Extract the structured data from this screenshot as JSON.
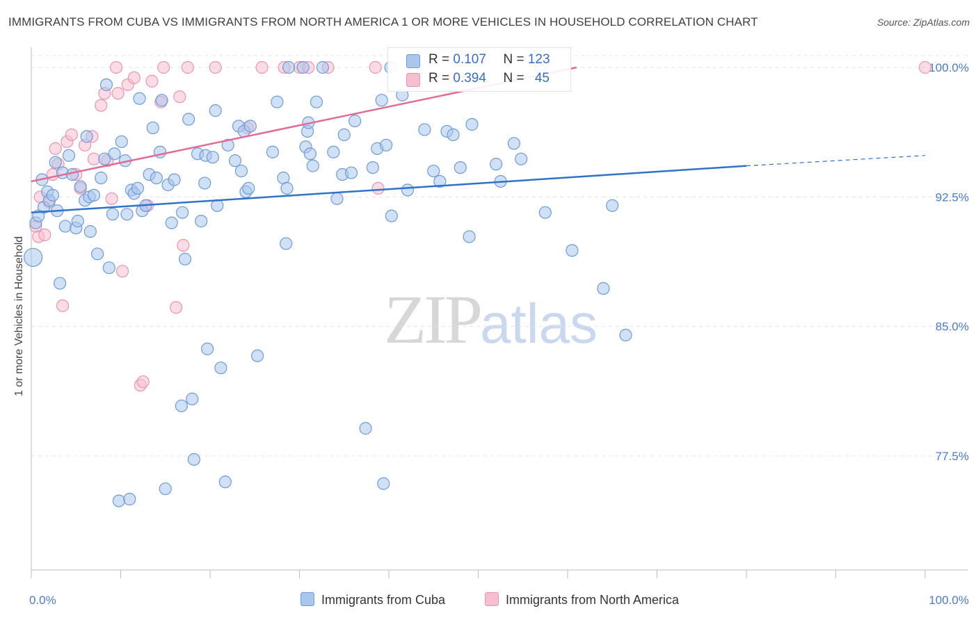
{
  "header": {
    "title": "IMMIGRANTS FROM CUBA VS IMMIGRANTS FROM NORTH AMERICA 1 OR MORE VEHICLES IN HOUSEHOLD CORRELATION CHART",
    "source": "Source: ZipAtlas.com"
  },
  "watermark": {
    "zip": "ZIP",
    "atlas": "atlas"
  },
  "legend": {
    "cuba": {
      "r_label": "R = ",
      "r_value": "0.107",
      "n_label": "N = ",
      "n_value": "123"
    },
    "north_america": {
      "r_label": "R = ",
      "r_value": "0.394",
      "n_label": "N = ",
      "n_value": "45"
    }
  },
  "colors": {
    "cuba_fill": "#a9c6ec",
    "cuba_stroke": "#6f9ad6",
    "cuba_line": "#2e72c9",
    "na_fill": "#f6bfd0",
    "na_stroke": "#ec93b0",
    "na_line": "#e26a95",
    "grid": "#e3e3e3",
    "tick_text": "#4a7cc7"
  },
  "chart_data": {
    "type": "scatter",
    "title": "IMMIGRANTS FROM CUBA VS IMMIGRANTS FROM NORTH AMERICA 1 OR MORE VEHICLES IN HOUSEHOLD CORRELATION CHART",
    "xlabel": "",
    "ylabel": "1 or more Vehicles in Household",
    "xlim": [
      0,
      100
    ],
    "ylim": [
      70,
      101
    ],
    "x_tick_labels": [
      "0.0%",
      "100.0%"
    ],
    "y_ticks": [
      77.5,
      85.0,
      92.5,
      100.0
    ],
    "y_tick_labels": [
      "77.5%",
      "85.0%",
      "92.5%",
      "100.0%"
    ],
    "legend_position": "top-center",
    "series": [
      {
        "name": "Immigrants from Cuba",
        "trend": {
          "x": [
            0,
            80
          ],
          "y": [
            91.6,
            94.3
          ],
          "dashed_to": [
            100,
            94.9
          ]
        },
        "points": [
          [
            0.2,
            89.0
          ],
          [
            0.5,
            91.0
          ],
          [
            0.8,
            91.4
          ],
          [
            1.2,
            93.5
          ],
          [
            1.4,
            91.9
          ],
          [
            1.8,
            92.8
          ],
          [
            2.0,
            92.3
          ],
          [
            2.4,
            92.6
          ],
          [
            2.7,
            94.5
          ],
          [
            2.9,
            91.7
          ],
          [
            3.2,
            87.5
          ],
          [
            3.5,
            93.9
          ],
          [
            3.8,
            90.8
          ],
          [
            4.2,
            94.9
          ],
          [
            4.6,
            93.8
          ],
          [
            5.0,
            90.7
          ],
          [
            5.2,
            91.1
          ],
          [
            5.5,
            93.1
          ],
          [
            6.0,
            92.3
          ],
          [
            6.2,
            96.0
          ],
          [
            6.5,
            92.5
          ],
          [
            6.6,
            90.5
          ],
          [
            7.0,
            92.6
          ],
          [
            7.4,
            89.2
          ],
          [
            7.8,
            93.6
          ],
          [
            8.2,
            94.7
          ],
          [
            8.4,
            99.0
          ],
          [
            8.7,
            88.4
          ],
          [
            9.1,
            91.5
          ],
          [
            9.3,
            95.0
          ],
          [
            9.8,
            74.9
          ],
          [
            10.1,
            95.7
          ],
          [
            10.5,
            94.6
          ],
          [
            10.7,
            91.5
          ],
          [
            11.0,
            75.0
          ],
          [
            11.2,
            92.9
          ],
          [
            11.5,
            92.7
          ],
          [
            11.9,
            93.0
          ],
          [
            12.1,
            98.2
          ],
          [
            12.4,
            91.7
          ],
          [
            12.8,
            92.0
          ],
          [
            13.2,
            93.8
          ],
          [
            13.6,
            96.5
          ],
          [
            14.0,
            93.6
          ],
          [
            14.4,
            95.1
          ],
          [
            14.6,
            98.1
          ],
          [
            15.0,
            75.6
          ],
          [
            15.3,
            93.2
          ],
          [
            15.7,
            91.0
          ],
          [
            16.0,
            93.5
          ],
          [
            16.8,
            80.4
          ],
          [
            16.9,
            91.6
          ],
          [
            17.2,
            88.9
          ],
          [
            17.6,
            97.0
          ],
          [
            18.0,
            80.8
          ],
          [
            18.2,
            77.3
          ],
          [
            18.6,
            95.0
          ],
          [
            19.0,
            91.1
          ],
          [
            19.5,
            94.9
          ],
          [
            19.4,
            93.3
          ],
          [
            19.7,
            83.7
          ],
          [
            20.3,
            94.8
          ],
          [
            20.6,
            97.5
          ],
          [
            20.8,
            92.0
          ],
          [
            21.2,
            82.6
          ],
          [
            21.7,
            76.0
          ],
          [
            22.0,
            95.5
          ],
          [
            22.8,
            94.6
          ],
          [
            23.2,
            96.6
          ],
          [
            23.5,
            94.0
          ],
          [
            23.8,
            96.3
          ],
          [
            24.0,
            92.8
          ],
          [
            24.3,
            93.0
          ],
          [
            24.5,
            96.6
          ],
          [
            25.3,
            83.3
          ],
          [
            27.0,
            95.1
          ],
          [
            27.5,
            98.0
          ],
          [
            28.2,
            93.6
          ],
          [
            28.5,
            89.8
          ],
          [
            28.6,
            93.0
          ],
          [
            28.8,
            100.0
          ],
          [
            30.4,
            100.0
          ],
          [
            30.7,
            95.4
          ],
          [
            30.9,
            96.3
          ],
          [
            31.0,
            96.8
          ],
          [
            31.2,
            95.0
          ],
          [
            31.5,
            94.3
          ],
          [
            31.9,
            98.0
          ],
          [
            32.6,
            100.0
          ],
          [
            33.8,
            95.1
          ],
          [
            34.2,
            92.4
          ],
          [
            34.8,
            93.8
          ],
          [
            35.0,
            96.1
          ],
          [
            35.8,
            93.9
          ],
          [
            36.2,
            96.9
          ],
          [
            37.4,
            79.1
          ],
          [
            38.2,
            94.2
          ],
          [
            38.7,
            95.3
          ],
          [
            39.2,
            98.1
          ],
          [
            39.4,
            75.9
          ],
          [
            39.7,
            95.5
          ],
          [
            40.3,
            91.4
          ],
          [
            40.2,
            100.0
          ],
          [
            41.5,
            98.4
          ],
          [
            42.1,
            92.9
          ],
          [
            44.0,
            96.4
          ],
          [
            45.0,
            94.0
          ],
          [
            45.7,
            93.4
          ],
          [
            46.5,
            96.3
          ],
          [
            47.2,
            96.1
          ],
          [
            48.0,
            94.2
          ],
          [
            49.3,
            96.7
          ],
          [
            49.0,
            90.2
          ],
          [
            52.0,
            94.4
          ],
          [
            52.5,
            93.4
          ],
          [
            54.0,
            95.6
          ],
          [
            54.8,
            94.7
          ],
          [
            57.0,
            100.0
          ],
          [
            57.5,
            91.6
          ],
          [
            60.5,
            89.4
          ],
          [
            64.0,
            87.2
          ],
          [
            65.0,
            92.0
          ],
          [
            66.5,
            84.5
          ]
        ]
      },
      {
        "name": "Immigrants from North America",
        "trend": {
          "x": [
            0,
            61
          ],
          "y": [
            93.4,
            100.0
          ]
        },
        "points": [
          [
            0.5,
            90.8
          ],
          [
            0.8,
            90.2
          ],
          [
            1.0,
            92.5
          ],
          [
            1.5,
            90.3
          ],
          [
            2.0,
            92.2
          ],
          [
            2.4,
            93.8
          ],
          [
            2.7,
            95.3
          ],
          [
            3.0,
            94.4
          ],
          [
            3.5,
            86.2
          ],
          [
            4.0,
            95.7
          ],
          [
            4.5,
            96.1
          ],
          [
            5.0,
            93.8
          ],
          [
            5.5,
            93.0
          ],
          [
            6.0,
            95.5
          ],
          [
            6.8,
            96.0
          ],
          [
            7.0,
            94.7
          ],
          [
            7.8,
            97.8
          ],
          [
            8.2,
            98.5
          ],
          [
            8.5,
            94.6
          ],
          [
            9.0,
            92.4
          ],
          [
            9.5,
            100.0
          ],
          [
            9.7,
            98.5
          ],
          [
            10.2,
            88.2
          ],
          [
            10.8,
            99.0
          ],
          [
            11.5,
            99.4
          ],
          [
            12.2,
            81.6
          ],
          [
            12.5,
            81.8
          ],
          [
            13.0,
            92.0
          ],
          [
            13.5,
            99.2
          ],
          [
            14.5,
            98.0
          ],
          [
            14.8,
            100.0
          ],
          [
            16.2,
            86.1
          ],
          [
            16.6,
            98.3
          ],
          [
            17.0,
            89.7
          ],
          [
            17.5,
            100.0
          ],
          [
            20.6,
            100.0
          ],
          [
            24.2,
            96.5
          ],
          [
            25.8,
            100.0
          ],
          [
            28.3,
            100.0
          ],
          [
            30.0,
            100.0
          ],
          [
            31.0,
            100.0
          ],
          [
            33.2,
            100.0
          ],
          [
            38.8,
            93.0
          ],
          [
            38.5,
            100.0
          ],
          [
            100.0,
            100.0
          ]
        ]
      }
    ]
  },
  "bottom_legend": {
    "cuba_label": "Immigrants from Cuba",
    "na_label": "Immigrants from North America"
  }
}
